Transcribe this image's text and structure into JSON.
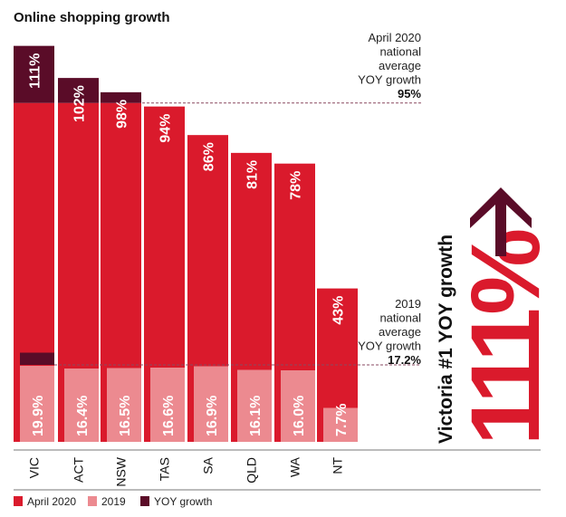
{
  "chart_data": {
    "type": "bar",
    "title": "Online shopping growth",
    "categories": [
      "VIC",
      "ACT",
      "NSW",
      "TAS",
      "SA",
      "QLD",
      "WA",
      "NT"
    ],
    "series": [
      {
        "name": "April 2020",
        "values": [
          111,
          102,
          98,
          94,
          86,
          81,
          78,
          43
        ],
        "labels": [
          "111%",
          "102%",
          "98%",
          "94%",
          "86%",
          "81%",
          "78%",
          "43%"
        ]
      },
      {
        "name": "2019",
        "values": [
          19.9,
          16.4,
          16.5,
          16.6,
          16.9,
          16.1,
          16.0,
          7.7
        ],
        "labels": [
          "19.9%",
          "16.4%",
          "16.5%",
          "16.6%",
          "16.9%",
          "16.1%",
          "16.0%",
          "7.7%"
        ]
      },
      {
        "name": "YOY growth"
      }
    ],
    "reference_lines": [
      {
        "series": "April 2020",
        "value": 95,
        "label_lines": [
          "April 2020",
          "national",
          "average",
          "YOY growth"
        ],
        "value_label": "95%"
      },
      {
        "series": "2019",
        "value": 17.2,
        "label_lines": [
          "2019",
          "national",
          "average",
          "YOY growth"
        ],
        "value_label": "17.2%"
      }
    ],
    "legend_position": "bottom-left",
    "grid": false,
    "colors": {
      "April 2020": "#da1a2c",
      "2019": "#ec8a90",
      "YOY growth": "#5a0c28"
    }
  },
  "callout": {
    "title": "Victoria #1 YOY growth",
    "value": "111%",
    "icon": "arrow-up-icon"
  }
}
